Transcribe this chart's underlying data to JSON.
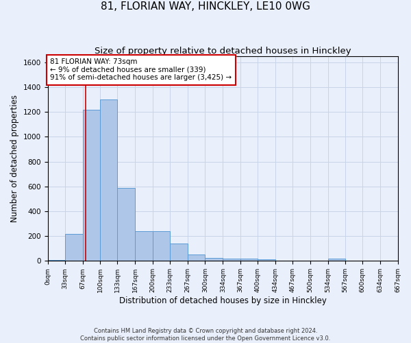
{
  "title": "81, FLORIAN WAY, HINCKLEY, LE10 0WG",
  "subtitle": "Size of property relative to detached houses in Hinckley",
  "xlabel": "Distribution of detached houses by size in Hinckley",
  "ylabel": "Number of detached properties",
  "footnote1": "Contains HM Land Registry data © Crown copyright and database right 2024.",
  "footnote2": "Contains public sector information licensed under the Open Government Licence v3.0.",
  "bin_edges": [
    0,
    33,
    67,
    100,
    133,
    167,
    200,
    233,
    267,
    300,
    334,
    367,
    400,
    434,
    467,
    500,
    534,
    567,
    600,
    634,
    667
  ],
  "bar_heights": [
    10,
    220,
    1220,
    1300,
    590,
    240,
    240,
    140,
    50,
    25,
    20,
    20,
    15,
    0,
    0,
    0,
    20,
    0,
    0,
    0
  ],
  "bar_color": "#aec6e8",
  "bar_edgecolor": "#5b9bd5",
  "grid_color": "#c8d4e8",
  "bg_color": "#eaf0fb",
  "red_line_x": 73,
  "red_line_color": "#cc0000",
  "annotation_text": "81 FLORIAN WAY: 73sqm\n← 9% of detached houses are smaller (339)\n91% of semi-detached houses are larger (3,425) →",
  "annotation_box_color": "#ffffff",
  "annotation_box_edgecolor": "#cc0000",
  "ylim": [
    0,
    1650
  ],
  "title_fontsize": 11,
  "subtitle_fontsize": 9.5,
  "xlabel_fontsize": 8.5,
  "ylabel_fontsize": 8.5,
  "tick_labels": [
    "0sqm",
    "33sqm",
    "67sqm",
    "100sqm",
    "133sqm",
    "167sqm",
    "200sqm",
    "233sqm",
    "267sqm",
    "300sqm",
    "334sqm",
    "367sqm",
    "400sqm",
    "434sqm",
    "467sqm",
    "500sqm",
    "534sqm",
    "567sqm",
    "600sqm",
    "634sqm",
    "667sqm"
  ]
}
